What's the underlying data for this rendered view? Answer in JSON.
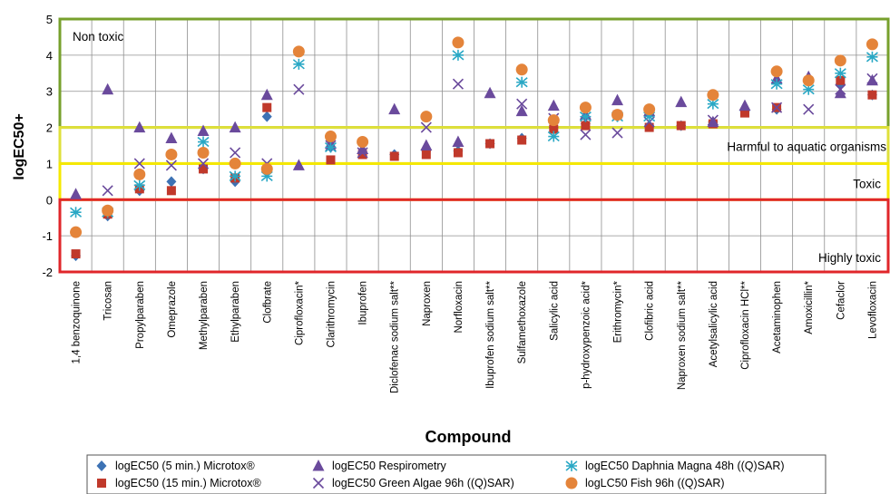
{
  "chart_data": {
    "type": "scatter",
    "xlabel": "Compound",
    "ylabel": "logEC50+",
    "ylim": [
      -2,
      5
    ],
    "yticks": [
      "-2",
      "-1",
      "0",
      "1",
      "2",
      "3",
      "4",
      "5"
    ],
    "grid": true,
    "legend_position": "bottom",
    "categories": [
      "1,4 benzoquinone",
      "Tricosan",
      "Propylparaben",
      "Omeprazole",
      "Methylparaben",
      "Ethylparaben",
      "Clofbrate",
      "Ciprofloxacin*",
      "Clarithromycin",
      "Ibuprofen",
      "Diclofenac sodium salt**",
      "Naproxen",
      "Norfloxacin",
      "Ibuprofen sodium salt**",
      "Sulfamethoxazole",
      "Salicylic acid",
      "p-hydroxypenzoic acid*",
      "Erithromycin*",
      "Clofibric acid",
      "Naproxen sodium salt**",
      "Acetylsalicylic acid",
      "Ciprofloxacin HCl**",
      "Acetaminophen",
      "Amoxicillin*",
      "Cefaclor",
      "Levofloxacin"
    ],
    "zones": [
      {
        "label": "Non toxic",
        "from": 2,
        "to": 5,
        "color": "#77a02c"
      },
      {
        "label": "Harmful to aquatic organisms",
        "from": 1,
        "to": 2,
        "color": "#dfe03a"
      },
      {
        "label": "Toxic",
        "from": 0,
        "to": 1,
        "color": "#f5e800"
      },
      {
        "label": "Highly toxic",
        "from": -2,
        "to": 0,
        "color": "#e0262a"
      }
    ],
    "series": [
      {
        "name": "logEC50 (5 min.) Microtox®",
        "marker": "diamond",
        "color": "#3d72b4",
        "values": [
          -1.55,
          -0.45,
          0.25,
          0.5,
          0.85,
          0.5,
          2.3,
          null,
          1.45,
          1.3,
          1.25,
          1.35,
          1.35,
          1.55,
          1.7,
          2.0,
          2.1,
          2.3,
          2.05,
          2.05,
          2.15,
          2.45,
          2.5,
          null,
          3.2,
          2.9
        ]
      },
      {
        "name": "logEC50 (15 min.) Microtox®",
        "marker": "square",
        "color": "#c0392b",
        "values": [
          -1.5,
          -0.4,
          0.3,
          0.25,
          0.85,
          0.6,
          2.55,
          null,
          1.1,
          1.25,
          1.2,
          1.25,
          1.3,
          1.55,
          1.65,
          1.95,
          2.05,
          2.35,
          2.0,
          2.05,
          2.1,
          2.4,
          2.55,
          null,
          3.3,
          2.9
        ]
      },
      {
        "name": "logEC50 Respirometry",
        "marker": "triangle",
        "color": "#6a4a9c",
        "values": [
          0.15,
          3.05,
          2.0,
          1.7,
          1.9,
          2.0,
          2.9,
          0.95,
          1.55,
          1.4,
          2.5,
          1.5,
          1.6,
          2.95,
          2.45,
          2.6,
          2.35,
          2.75,
          2.45,
          2.7,
          2.15,
          2.6,
          3.35,
          3.4,
          2.95,
          3.3
        ]
      },
      {
        "name": "logEC50 Green Algae 96h ((Q)SAR)",
        "marker": "x",
        "color": "#6a4a9c",
        "values": [
          null,
          0.25,
          1.0,
          0.95,
          1.0,
          1.3,
          1.0,
          3.05,
          1.5,
          1.3,
          null,
          2.0,
          3.2,
          null,
          2.65,
          2.25,
          1.8,
          1.85,
          2.15,
          null,
          2.2,
          null,
          2.55,
          2.5,
          3.05,
          3.35
        ]
      },
      {
        "name": "logEC50 Daphnia Magna 48h ((Q)SAR)",
        "marker": "asterisk",
        "color": "#2aa8c5",
        "values": [
          -0.35,
          -0.35,
          0.4,
          null,
          1.6,
          0.65,
          0.65,
          3.75,
          1.45,
          null,
          null,
          null,
          4.0,
          null,
          3.25,
          1.75,
          2.3,
          2.3,
          2.3,
          null,
          2.65,
          null,
          3.2,
          3.05,
          3.5,
          3.95
        ]
      },
      {
        "name": "logLC50  Fish 96h ((Q)SAR)",
        "marker": "circle",
        "color": "#e4843a",
        "values": [
          -0.9,
          -0.3,
          0.7,
          1.25,
          1.3,
          1.0,
          0.85,
          4.1,
          1.75,
          1.6,
          null,
          2.3,
          4.35,
          null,
          3.6,
          2.2,
          2.55,
          2.35,
          2.5,
          null,
          2.9,
          null,
          3.55,
          3.3,
          3.85,
          4.3
        ]
      }
    ]
  }
}
